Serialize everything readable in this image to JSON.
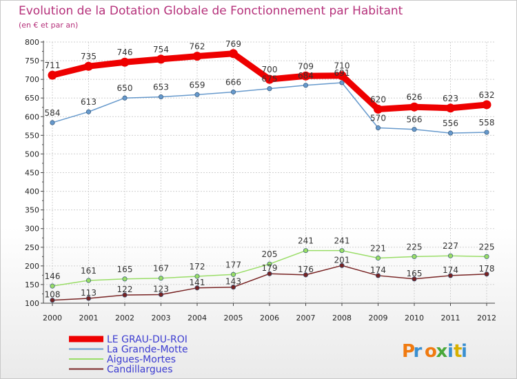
{
  "chart_data": {
    "type": "line",
    "title": "Evolution de la Dotation Globale de Fonctionnement par Habitant",
    "subtitle": "(en € et par an)",
    "xlabel": "",
    "ylabel": "",
    "x": [
      "2000",
      "2001",
      "2002",
      "2003",
      "2004",
      "2005",
      "2006",
      "2007",
      "2008",
      "2009",
      "2010",
      "2011",
      "2012"
    ],
    "ylim": [
      100,
      800
    ],
    "yticks": [
      100,
      150,
      200,
      250,
      300,
      350,
      400,
      450,
      500,
      550,
      600,
      650,
      700,
      750,
      800
    ],
    "grid": true,
    "legend_position": "bottom-left",
    "series": [
      {
        "name": "LE GRAU-DU-ROI",
        "color": "#ee0000",
        "values": [
          711,
          735,
          746,
          754,
          762,
          769,
          700,
          709,
          710,
          620,
          626,
          623,
          632
        ]
      },
      {
        "name": "La Grande-Motte",
        "color": "#6699cc",
        "values": [
          584,
          613,
          650,
          653,
          659,
          666,
          675,
          684,
          691,
          570,
          566,
          556,
          558
        ],
        "labels": [
          "584",
          "613",
          "650",
          "653",
          "659",
          "666",
          "675",
          "684",
          "691",
          "570",
          "566",
          "556",
          "558"
        ]
      },
      {
        "name": "Aigues-Mortes",
        "color": "#99dd66",
        "values": [
          146,
          161,
          165,
          167,
          172,
          177,
          205,
          241,
          241,
          221,
          225,
          227,
          225
        ]
      },
      {
        "name": "Candillargues",
        "color": "#772222",
        "values": [
          108,
          113,
          122,
          123,
          141,
          143,
          179,
          176,
          201,
          174,
          165,
          174,
          178
        ]
      }
    ]
  },
  "logo": {
    "text": "Proxiti"
  }
}
